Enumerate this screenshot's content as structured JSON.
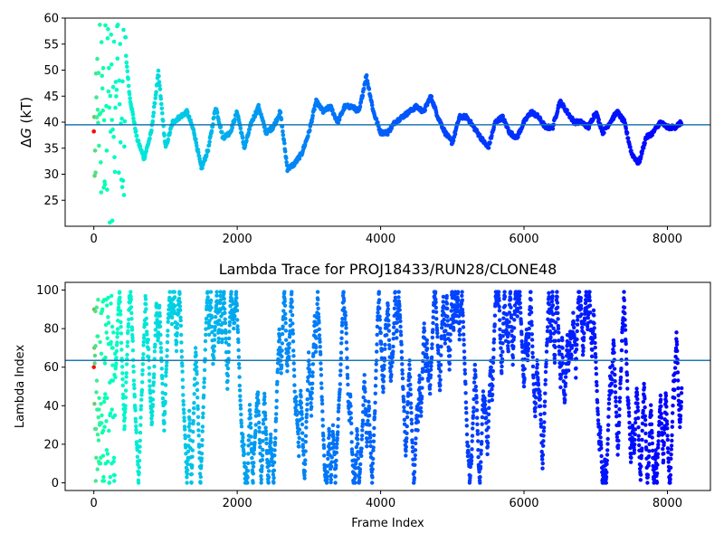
{
  "figure": {
    "background": "#ffffff",
    "colormap": "rainbow",
    "hline_color": "#1f77b4"
  },
  "chart_data": [
    {
      "type": "scatter",
      "title": "",
      "xlabel": "",
      "ylabel_prefix": "Δ",
      "ylabel_italic": "G",
      "ylabel_suffix": " (kT)",
      "xlim": [
        -400,
        8600
      ],
      "ylim": [
        20,
        60
      ],
      "xticks": [
        0,
        2000,
        4000,
        6000,
        8000
      ],
      "yticks": [
        25,
        30,
        35,
        40,
        45,
        50,
        55,
        60
      ],
      "hline": 39.5,
      "n_frames": 8200,
      "points_sampled": [
        [
          0,
          20.5
        ],
        [
          10,
          46
        ],
        [
          20,
          40
        ],
        [
          30,
          33
        ],
        [
          40,
          51
        ],
        [
          50,
          36
        ],
        [
          60,
          57
        ],
        [
          70,
          26.5
        ],
        [
          80,
          59
        ],
        [
          90,
          45
        ],
        [
          100,
          55
        ],
        [
          120,
          49
        ],
        [
          140,
          42
        ],
        [
          160,
          39
        ],
        [
          180,
          29
        ],
        [
          200,
          50
        ],
        [
          250,
          46
        ],
        [
          300,
          43
        ],
        [
          350,
          41
        ],
        [
          400,
          40
        ],
        [
          430,
          55.5
        ],
        [
          500,
          45
        ],
        [
          550,
          41
        ],
        [
          600,
          37
        ],
        [
          700,
          33
        ],
        [
          800,
          38
        ],
        [
          900,
          49.5
        ],
        [
          1000,
          35
        ],
        [
          1100,
          40
        ],
        [
          1200,
          41
        ],
        [
          1300,
          42
        ],
        [
          1400,
          38
        ],
        [
          1500,
          31
        ],
        [
          1600,
          35
        ],
        [
          1700,
          43
        ],
        [
          1800,
          37
        ],
        [
          1900,
          38
        ],
        [
          2000,
          42
        ],
        [
          2100,
          35
        ],
        [
          2200,
          40
        ],
        [
          2300,
          43
        ],
        [
          2400,
          38
        ],
        [
          2500,
          39
        ],
        [
          2600,
          42
        ],
        [
          2700,
          31
        ],
        [
          2800,
          32
        ],
        [
          2900,
          34
        ],
        [
          3000,
          38
        ],
        [
          3100,
          44
        ],
        [
          3200,
          42
        ],
        [
          3300,
          43
        ],
        [
          3400,
          40
        ],
        [
          3500,
          43
        ],
        [
          3600,
          43
        ],
        [
          3700,
          42
        ],
        [
          3800,
          49
        ],
        [
          3900,
          42
        ],
        [
          4000,
          38
        ],
        [
          4100,
          38
        ],
        [
          4200,
          40
        ],
        [
          4300,
          41
        ],
        [
          4400,
          42
        ],
        [
          4500,
          43
        ],
        [
          4600,
          42
        ],
        [
          4700,
          45
        ],
        [
          4800,
          41
        ],
        [
          4900,
          38
        ],
        [
          5000,
          36
        ],
        [
          5100,
          41
        ],
        [
          5200,
          41
        ],
        [
          5300,
          39
        ],
        [
          5400,
          37
        ],
        [
          5500,
          35
        ],
        [
          5600,
          40
        ],
        [
          5700,
          41
        ],
        [
          5800,
          38
        ],
        [
          5900,
          37
        ],
        [
          6000,
          40
        ],
        [
          6100,
          42
        ],
        [
          6200,
          41
        ],
        [
          6300,
          39
        ],
        [
          6400,
          39
        ],
        [
          6500,
          44
        ],
        [
          6600,
          42
        ],
        [
          6700,
          40
        ],
        [
          6800,
          40
        ],
        [
          6900,
          39
        ],
        [
          7000,
          42
        ],
        [
          7100,
          38
        ],
        [
          7200,
          40
        ],
        [
          7300,
          42
        ],
        [
          7400,
          40
        ],
        [
          7500,
          34
        ],
        [
          7600,
          32
        ],
        [
          7700,
          37
        ],
        [
          7800,
          38
        ],
        [
          7900,
          40
        ],
        [
          8000,
          39
        ],
        [
          8100,
          39
        ],
        [
          8200,
          40
        ]
      ]
    },
    {
      "type": "scatter",
      "title": "Lambda Trace for PROJ18433/RUN28/CLONE48",
      "xlabel": "Frame Index",
      "ylabel": "Lambda Index",
      "xlim": [
        -400,
        8600
      ],
      "ylim": [
        -4,
        104
      ],
      "xticks": [
        0,
        2000,
        4000,
        6000,
        8000
      ],
      "yticks": [
        0,
        20,
        40,
        60,
        80,
        100
      ],
      "hline": 63.5,
      "n_frames": 8200,
      "lambda_range": [
        0,
        99
      ]
    }
  ]
}
